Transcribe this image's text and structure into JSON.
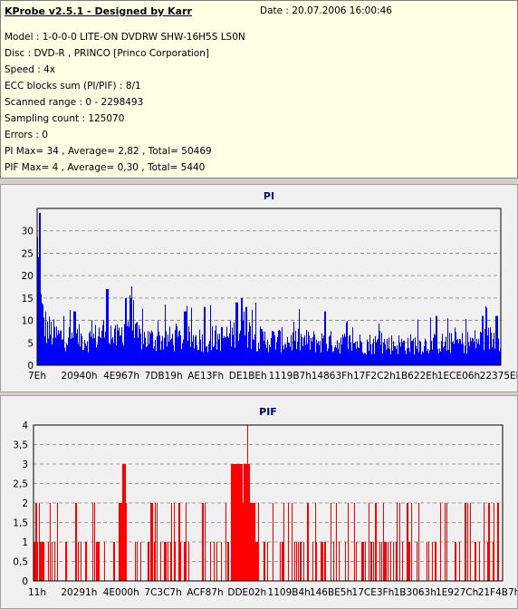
{
  "header": {
    "title": "KProbe v2.5.1 - Designed by Karr",
    "date": "Date : 20.07.2006 16:00:46"
  },
  "info_lines": [
    "Model : 1-0-0-0 LITE-ON DVDRW SHW-16H5S  LS0N",
    "Disc : DVD-R , PRINCO [Princo Corporation]",
    "Speed : 4x",
    "ECC blocks sum (PI/PIF) : 8/1",
    "Scanned range : 0 - 2298493",
    "Sampling count : 125070",
    "Errors : 0",
    "PI Max= 34 , Average= 2,82 , Total= 50469",
    "PIF Max= 4 , Average= 0,30 , Total= 5440"
  ],
  "colors": {
    "pi": "#0000ff",
    "pif": "#ff0000",
    "title": "#000080",
    "plot_bg": "#f0f0f0"
  },
  "chart_data": [
    {
      "type": "area",
      "title": "PI",
      "ylim": [
        0,
        35
      ],
      "yticks": [
        0,
        5,
        10,
        15,
        20,
        25,
        30
      ],
      "xticks": [
        "7Eh",
        "20940h",
        "4E967h",
        "7DB19h",
        "AE13Fh",
        "DE1BEh",
        "1119B7h",
        "14863Fh",
        "17F2C2h",
        "1B622Eh",
        "1ECE06h",
        "22375Eh"
      ],
      "grid": "horizontal",
      "profile": [
        [
          0.0,
          34
        ],
        [
          0.005,
          22
        ],
        [
          0.01,
          15
        ],
        [
          0.02,
          11
        ],
        [
          0.04,
          9
        ],
        [
          0.08,
          8.5
        ],
        [
          0.12,
          8
        ],
        [
          0.135,
          10
        ],
        [
          0.155,
          11
        ],
        [
          0.165,
          8
        ],
        [
          0.18,
          9
        ],
        [
          0.19,
          14
        ],
        [
          0.2,
          15
        ],
        [
          0.21,
          9
        ],
        [
          0.24,
          8
        ],
        [
          0.3,
          8
        ],
        [
          0.36,
          8
        ],
        [
          0.4,
          8.5
        ],
        [
          0.43,
          10
        ],
        [
          0.44,
          12
        ],
        [
          0.45,
          11
        ],
        [
          0.46,
          9.5
        ],
        [
          0.48,
          8
        ],
        [
          0.56,
          7.5
        ],
        [
          0.65,
          7
        ],
        [
          0.75,
          6.5
        ],
        [
          0.85,
          6.5
        ],
        [
          0.92,
          7
        ],
        [
          0.97,
          8
        ],
        [
          1.0,
          9
        ]
      ],
      "spikes": [
        [
          0.005,
          34
        ],
        [
          0.15,
          17
        ],
        [
          0.19,
          15
        ],
        [
          0.2,
          15
        ],
        [
          0.43,
          14
        ],
        [
          0.44,
          15
        ],
        [
          0.45,
          13
        ],
        [
          0.08,
          12
        ],
        [
          0.32,
          12
        ],
        [
          0.36,
          13
        ],
        [
          0.62,
          12
        ],
        [
          0.86,
          11
        ],
        [
          0.96,
          11
        ],
        [
          0.99,
          11
        ]
      ]
    },
    {
      "type": "bar",
      "title": "PIF",
      "ylim": [
        0,
        4
      ],
      "yticks": [
        "0",
        "0,5",
        "1",
        "1,5",
        "2",
        "2,5",
        "3",
        "3,5",
        "4"
      ],
      "xticks": [
        "11h",
        "20291h",
        "4E000h",
        "7C3C7h",
        "ACF87h",
        "DDE02h",
        "1109B4h",
        "146BE5h",
        "17CE3Fh",
        "1B3063h",
        "1E927Ch",
        "21F4B7h"
      ],
      "grid": "horizontal",
      "dense_regions": [
        [
          0.0,
          0.02,
          1
        ],
        [
          0.18,
          0.2,
          2
        ],
        [
          0.19,
          0.195,
          3
        ],
        [
          0.42,
          0.48,
          1
        ],
        [
          0.43,
          0.47,
          2
        ],
        [
          0.42,
          0.46,
          3
        ]
      ],
      "spikes": [
        [
          0.005,
          2
        ],
        [
          0.02,
          1
        ],
        [
          0.035,
          1
        ],
        [
          0.05,
          2
        ],
        [
          0.07,
          1
        ],
        [
          0.09,
          2
        ],
        [
          0.11,
          1
        ],
        [
          0.13,
          2
        ],
        [
          0.15,
          1
        ],
        [
          0.19,
          3
        ],
        [
          0.195,
          3
        ],
        [
          0.22,
          1
        ],
        [
          0.25,
          2
        ],
        [
          0.28,
          1
        ],
        [
          0.31,
          2
        ],
        [
          0.33,
          1
        ],
        [
          0.36,
          2
        ],
        [
          0.39,
          1
        ],
        [
          0.41,
          2
        ],
        [
          0.43,
          3
        ],
        [
          0.44,
          3
        ],
        [
          0.45,
          3
        ],
        [
          0.455,
          4
        ],
        [
          0.47,
          2
        ],
        [
          0.49,
          1
        ],
        [
          0.51,
          2
        ],
        [
          0.53,
          1
        ],
        [
          0.55,
          2
        ],
        [
          0.57,
          1
        ],
        [
          0.6,
          2
        ],
        [
          0.62,
          1
        ],
        [
          0.65,
          1
        ],
        [
          0.67,
          2
        ],
        [
          0.7,
          1
        ],
        [
          0.73,
          2
        ],
        [
          0.75,
          1
        ],
        [
          0.78,
          2
        ],
        [
          0.8,
          1
        ],
        [
          0.82,
          2
        ],
        [
          0.85,
          1
        ],
        [
          0.88,
          2
        ],
        [
          0.9,
          1
        ],
        [
          0.92,
          2
        ],
        [
          0.94,
          1
        ],
        [
          0.96,
          2
        ],
        [
          0.97,
          2
        ],
        [
          0.98,
          2
        ],
        [
          0.99,
          2
        ],
        [
          1.0,
          2
        ]
      ],
      "base_level": 1
    }
  ]
}
